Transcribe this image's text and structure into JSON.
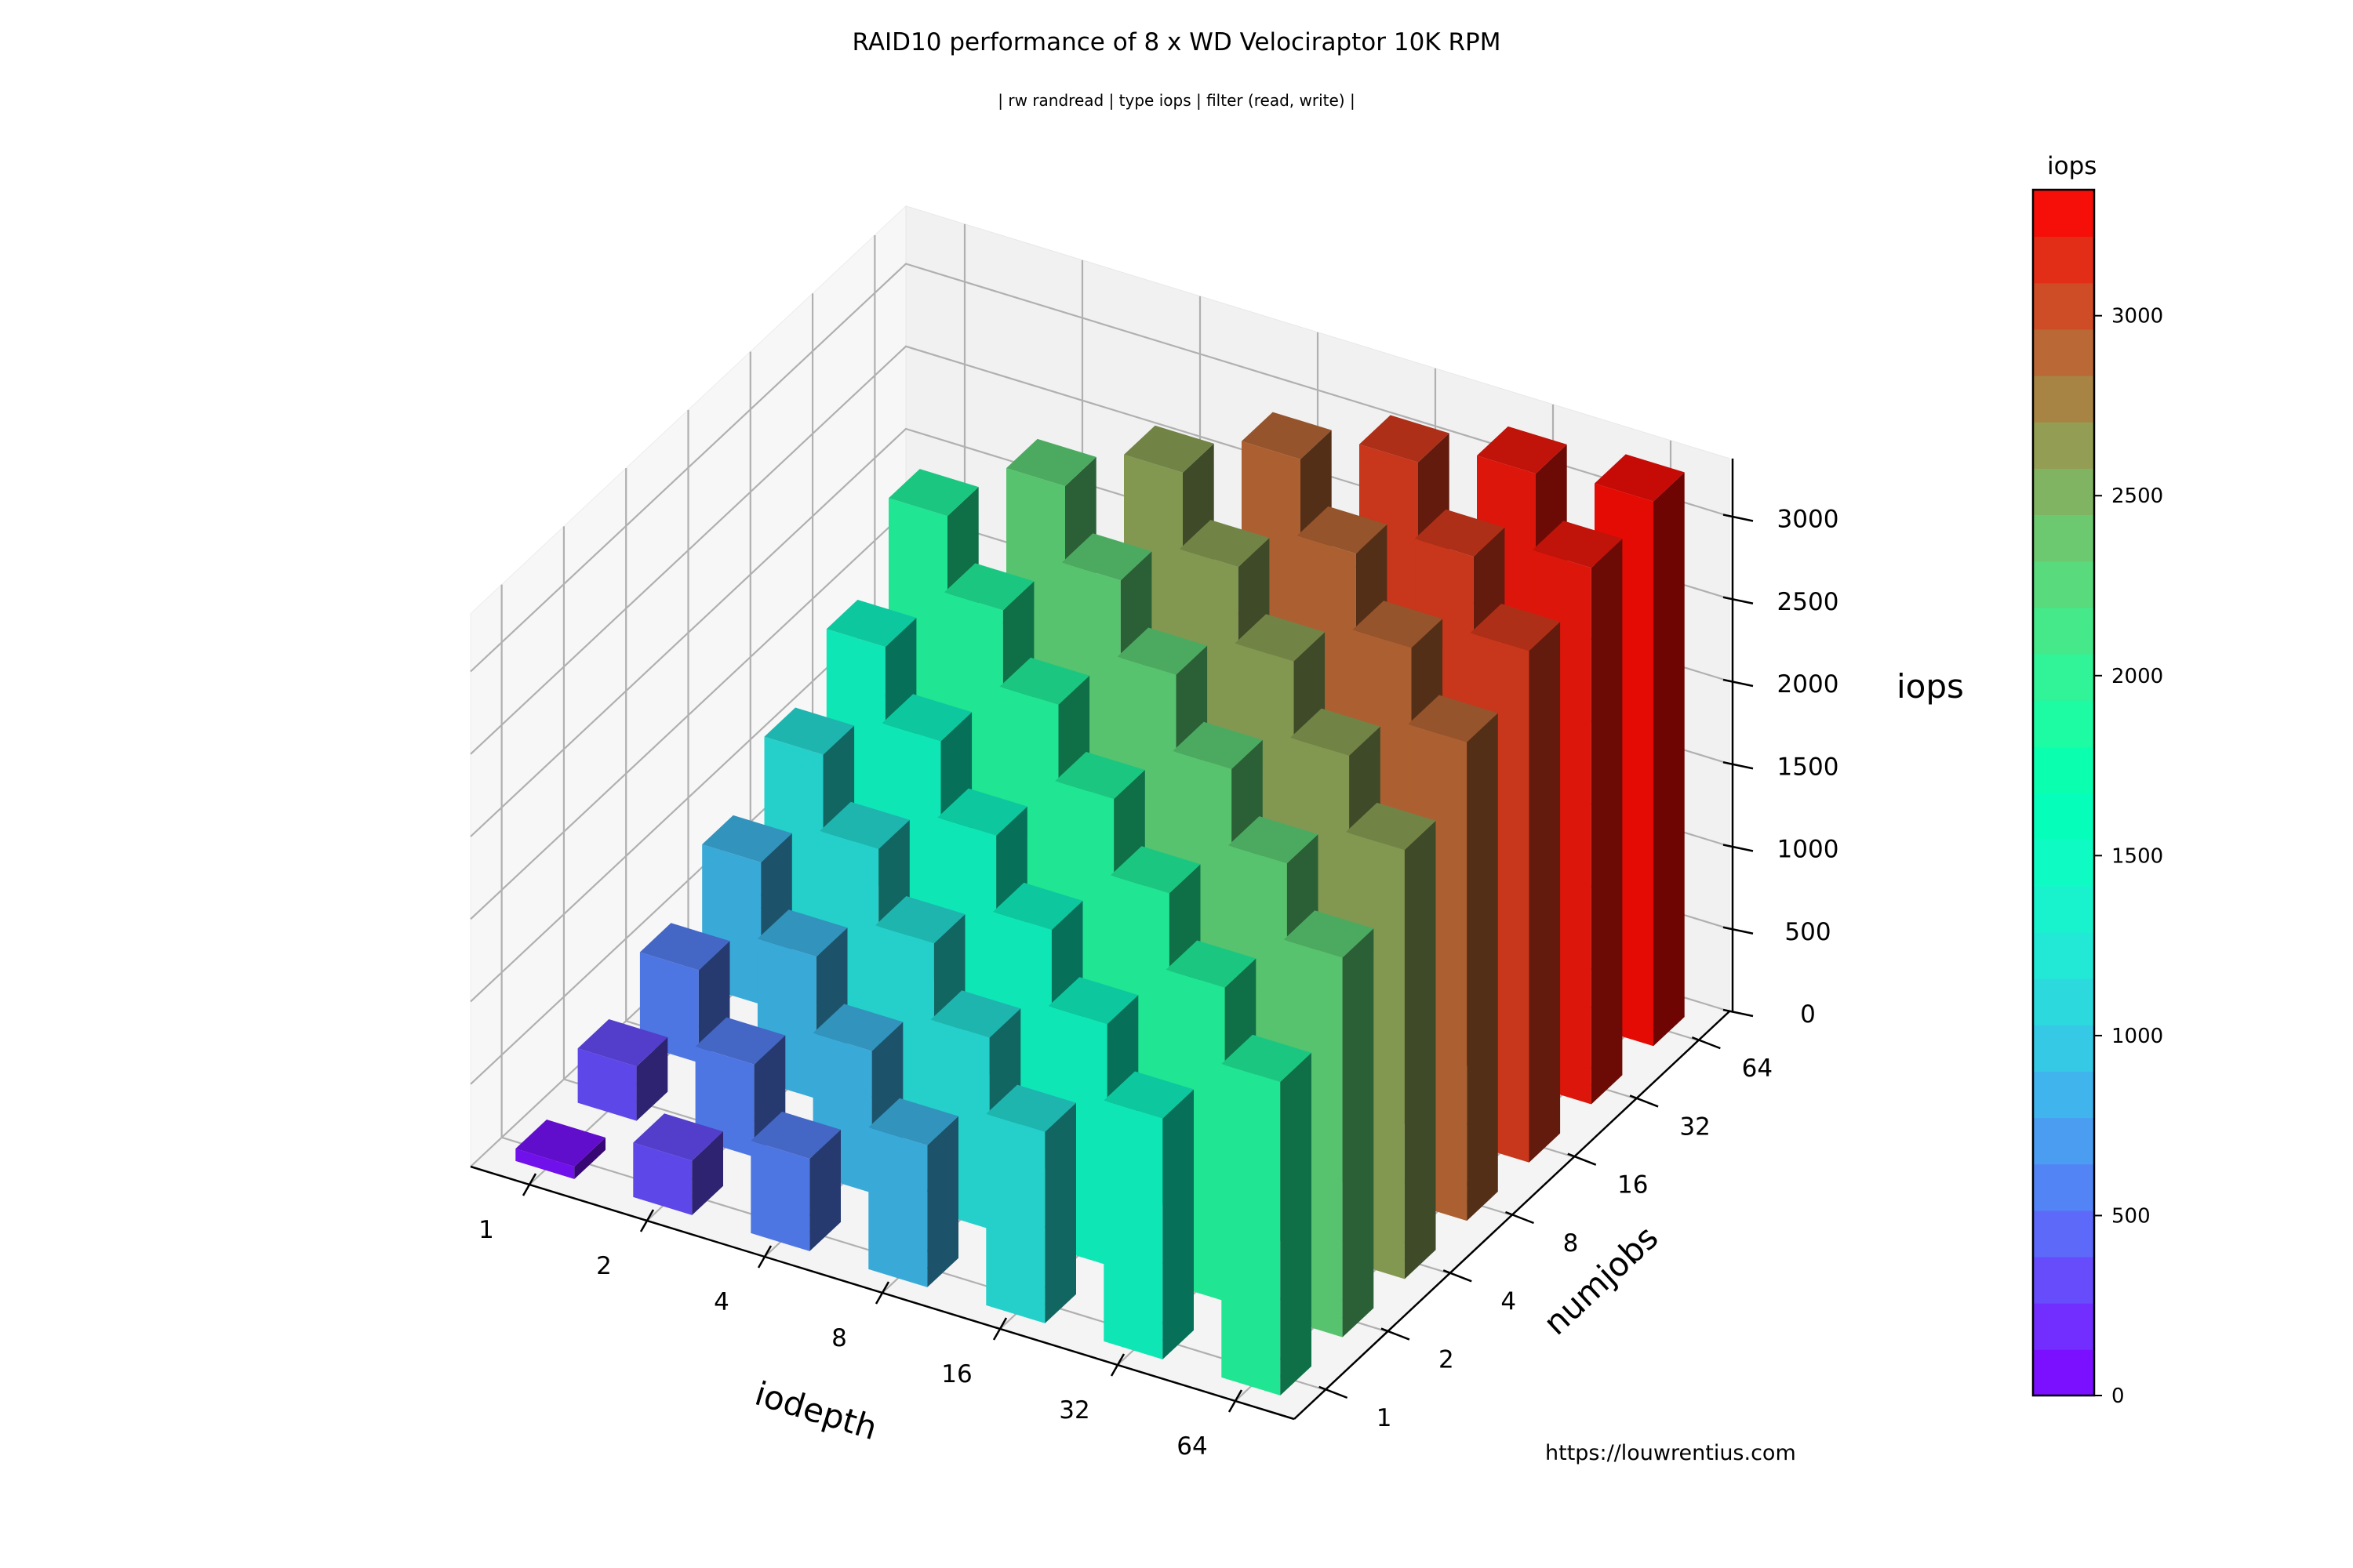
{
  "header": {
    "title": "RAID10 performance of 8 x WD Velociraptor 10K RPM",
    "subtitle": "| rw randread | type iops | filter (read, write) |"
  },
  "footer": {
    "url": "https://louwrentius.com"
  },
  "colorbar": {
    "label": "iops",
    "ticks": [
      "0",
      "500",
      "1000",
      "1500",
      "2000",
      "2500",
      "3000"
    ],
    "min": 0,
    "max": 3350,
    "colormap": "rainbow"
  },
  "chart_data": {
    "type": "bar3d",
    "title": "RAID10 performance of 8 x WD Velociraptor 10K RPM",
    "subtitle": "| rw randread | type iops | filter (read, write) |",
    "xlabel": "iodepth",
    "ylabel": "numjobs",
    "zlabel": "iops",
    "x_ticks": [
      "1",
      "2",
      "4",
      "8",
      "16",
      "32",
      "64"
    ],
    "y_ticks": [
      "1",
      "2",
      "4",
      "8",
      "16",
      "32",
      "64"
    ],
    "z_ticks": [
      "0",
      "500",
      "1000",
      "1500",
      "2000",
      "2500",
      "3000"
    ],
    "zlim": [
      0,
      3350
    ],
    "grid": true,
    "colorbar_position": "right",
    "note": "values[y_index][x_index]; rows = numjobs 1..64, columns = iodepth 1..64 (estimated from bar heights / colors)",
    "values": [
      [
        75,
        330,
        560,
        860,
        1160,
        1460,
        1900
      ],
      [
        330,
        560,
        860,
        1160,
        1460,
        1900,
        2300
      ],
      [
        560,
        860,
        1160,
        1460,
        1900,
        2300,
        2600
      ],
      [
        860,
        1160,
        1460,
        1900,
        2300,
        2600,
        2900
      ],
      [
        1160,
        1460,
        1900,
        2300,
        2600,
        2900,
        3100
      ],
      [
        1460,
        1900,
        2300,
        2600,
        2900,
        3100,
        3250
      ],
      [
        1900,
        2300,
        2600,
        2900,
        3100,
        3250,
        3300
      ]
    ]
  }
}
